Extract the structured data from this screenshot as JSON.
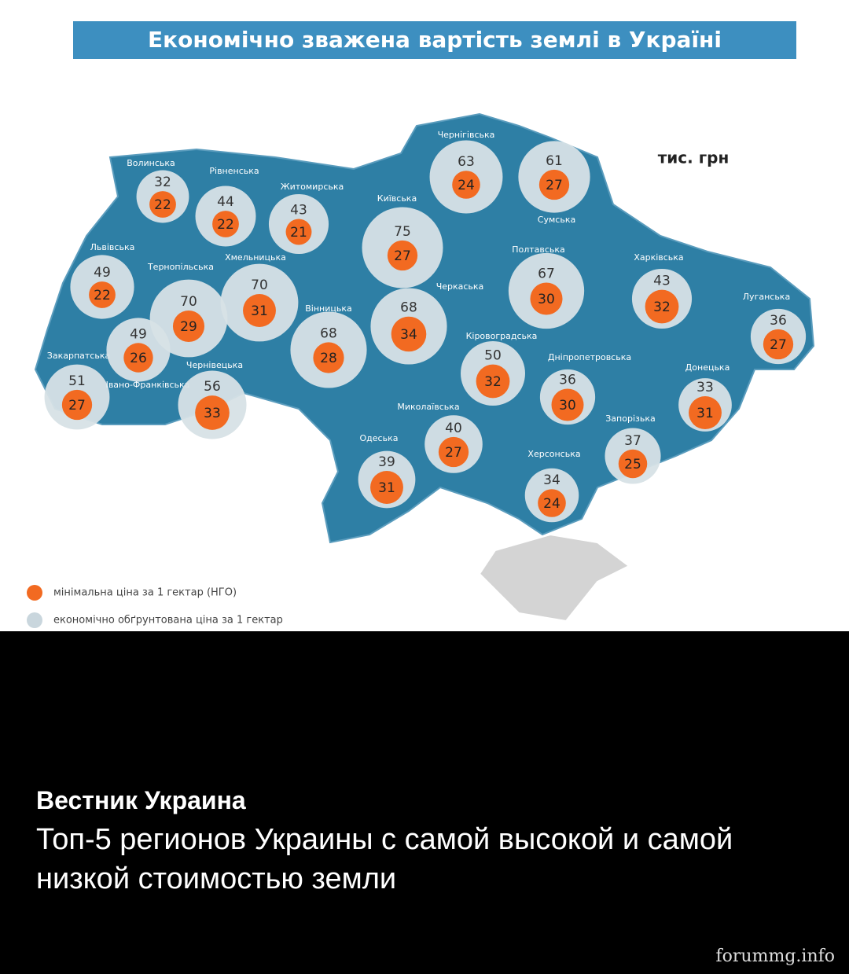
{
  "title": "Економічно зважена вартість землі в Україні",
  "unit": "тис. грн",
  "regions": [
    {
      "name": "Волинська",
      "economic": 32,
      "minimum": 22
    },
    {
      "name": "Рівненська",
      "economic": 44,
      "minimum": 22
    },
    {
      "name": "Житомирська",
      "economic": 43,
      "minimum": 21
    },
    {
      "name": "Київська",
      "economic": 75,
      "minimum": 27
    },
    {
      "name": "Чернігівська",
      "economic": 63,
      "minimum": 24
    },
    {
      "name": "Сумська",
      "economic": 61,
      "minimum": 27
    },
    {
      "name": "Львівська",
      "economic": 49,
      "minimum": 22
    },
    {
      "name": "Тернопільська",
      "economic": 70,
      "minimum": 29
    },
    {
      "name": "Хмельницька",
      "economic": 70,
      "minimum": 31
    },
    {
      "name": "Вінницька",
      "economic": 68,
      "minimum": 28
    },
    {
      "name": "Черкаська",
      "economic": 68,
      "minimum": 34
    },
    {
      "name": "Полтавська",
      "economic": 67,
      "minimum": 30
    },
    {
      "name": "Харківська",
      "economic": 43,
      "minimum": 32
    },
    {
      "name": "Луганська",
      "economic": 36,
      "minimum": 27
    },
    {
      "name": "Закарпатська",
      "economic": 51,
      "minimum": 27
    },
    {
      "name": "Івано-Франківська",
      "economic": 49,
      "minimum": 26
    },
    {
      "name": "Чернівецька",
      "economic": 56,
      "minimum": 33
    },
    {
      "name": "Кіровоградська",
      "economic": 50,
      "minimum": 32
    },
    {
      "name": "Дніпропетровська",
      "economic": 36,
      "minimum": 30
    },
    {
      "name": "Донецька",
      "economic": 33,
      "minimum": 31
    },
    {
      "name": "Миколаївська",
      "economic": 40,
      "minimum": 27
    },
    {
      "name": "Одеська",
      "economic": 39,
      "minimum": 31
    },
    {
      "name": "Запорізька",
      "economic": 37,
      "minimum": 25
    },
    {
      "name": "Херсонська",
      "economic": 34,
      "minimum": 24
    }
  ],
  "legend": {
    "minimum": "мінімальна ціна за 1 гектар (НГО)",
    "economic": "економічно обґрунтована ціна за 1 гектар"
  },
  "post": {
    "source": "Вестник Украина",
    "text": "Топ-5 регионов Украины с самой высокой и самой низкой стоимостью земли"
  },
  "watermark": "forummg.info"
}
